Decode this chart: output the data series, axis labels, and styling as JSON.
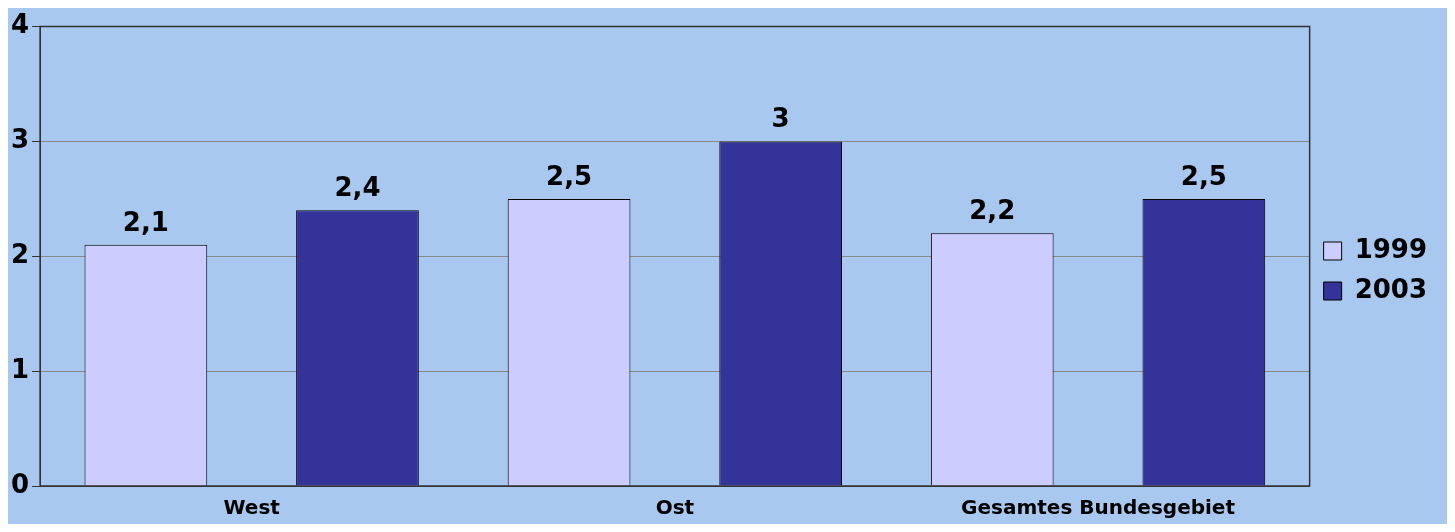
{
  "chart_data": {
    "type": "bar",
    "categories": [
      "West",
      "Ost",
      "Gesamtes Bundesgebiet"
    ],
    "series": [
      {
        "name": "1999",
        "color": "#ccccff",
        "values": [
          2.1,
          2.5,
          2.2
        ],
        "value_labels": [
          "2,1",
          "2,5",
          "2,2"
        ]
      },
      {
        "name": "2003",
        "color": "#333399",
        "values": [
          2.4,
          3,
          2.5
        ],
        "value_labels": [
          "2,4",
          "3",
          "2,5"
        ]
      }
    ],
    "ylim": [
      0,
      4
    ],
    "yticks": [
      0,
      1,
      2,
      3,
      4
    ],
    "grid": "y",
    "legend": "right"
  }
}
